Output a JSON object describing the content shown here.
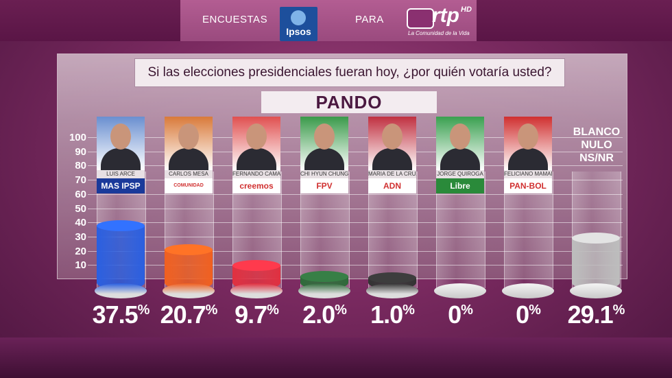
{
  "header": {
    "encuestas": "ENCUESTAS",
    "para": "PARA",
    "ipsos": "Ipsos",
    "rtp": "rtp",
    "rtp_hd": "HD",
    "rtp_tagline": "La Comunidad de la Vida"
  },
  "question": "Si las elecciones presidenciales fueran hoy, ¿por quién votaría usted?",
  "region": "PANDO",
  "blanco_label": "BLANCO\nNULO\nNS/NR",
  "candidates": [
    {
      "name": "LUIS ARCE",
      "party": "MAS IPSP",
      "pct": "37.5",
      "color": "#2a5fe0",
      "party_bg": "#1a3a9a",
      "photo_bg": "#6a8fd0"
    },
    {
      "name": "CARLOS MESA",
      "party": "COMUNIDAD CIUDADANA",
      "pct": "20.7",
      "color": "#f06020",
      "party_bg": "#ffffff",
      "photo_bg": "#d97a3a"
    },
    {
      "name": "FERNANDO CAMACHO",
      "party": "creemos",
      "pct": "9.7",
      "color": "#e03040",
      "party_bg": "#ffffff",
      "photo_bg": "#e05050"
    },
    {
      "name": "CHI HYUN CHUNG",
      "party": "FPV",
      "pct": "2.0",
      "color": "#2e6a3a",
      "party_bg": "#ffffff",
      "photo_bg": "#3a9a4a"
    },
    {
      "name": "MARIA DE LA CRUZ BAYA",
      "party": "ADN",
      "pct": "1.0",
      "color": "#333333",
      "party_bg": "#ffffff",
      "photo_bg": "#c03040"
    },
    {
      "name": "JORGE QUIROGA",
      "party": "Libre",
      "pct": "0",
      "color": "#dddddd",
      "party_bg": "#2a8a3a",
      "photo_bg": "#3aa050"
    },
    {
      "name": "FELICIANO MAMANI",
      "party": "PAN-BOL",
      "pct": "0",
      "color": "#dddddd",
      "party_bg": "#ffffff",
      "photo_bg": "#d03030"
    }
  ],
  "blanco_pct": "29.1",
  "percent_sign": "%",
  "chart_data": {
    "type": "bar",
    "title": "Si las elecciones presidenciales fueran hoy, ¿por quién votaría usted?",
    "subtitle": "PANDO",
    "categories": [
      "LUIS ARCE",
      "CARLOS MESA",
      "FERNANDO CAMACHO",
      "CHI HYUN CHUNG",
      "MARIA DE LA CRUZ BAYA",
      "JORGE QUIROGA",
      "FELICIANO MAMANI",
      "BLANCO NULO NS/NR"
    ],
    "values": [
      37.5,
      20.7,
      9.7,
      2.0,
      1.0,
      0,
      0,
      29.1
    ],
    "yticks": [
      10,
      20,
      30,
      40,
      50,
      60,
      70,
      80,
      90,
      100
    ],
    "ylim": [
      0,
      100
    ]
  }
}
